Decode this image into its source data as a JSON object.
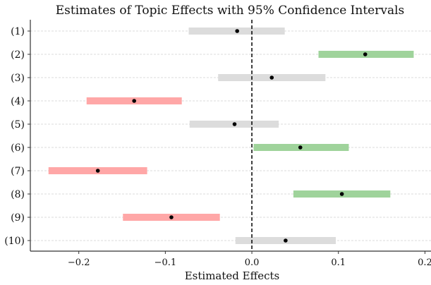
{
  "chart_data": {
    "type": "forest",
    "title": "Estimates of Topic Effects with 95% Confidence Intervals",
    "xlabel": "Estimated Effects",
    "ylabel": "",
    "xlim": [
      -0.256,
      0.207
    ],
    "xticks": [
      -0.2,
      -0.1,
      0.0,
      0.1,
      0.2
    ],
    "xtick_labels": [
      "−0.2",
      "−0.1",
      "0.0",
      "0.1",
      "0.2"
    ],
    "reference_line": 0.0,
    "grid": "horizontal dashed",
    "colors": {
      "positive": "#9fd39b",
      "negative": "#ffa7a7",
      "neutral": "#dcdcdc",
      "point": "#000000"
    },
    "categories": [
      "(1)",
      "(2)",
      "(3)",
      "(4)",
      "(5)",
      "(6)",
      "(7)",
      "(8)",
      "(9)",
      "(10)"
    ],
    "estimates": [
      -0.017,
      0.131,
      0.023,
      -0.136,
      -0.02,
      0.056,
      -0.178,
      0.104,
      -0.093,
      0.039
    ],
    "ci_lower": [
      -0.073,
      0.077,
      -0.039,
      -0.191,
      -0.072,
      0.002,
      -0.235,
      0.048,
      -0.149,
      -0.019
    ],
    "ci_upper": [
      0.038,
      0.187,
      0.085,
      -0.081,
      0.031,
      0.112,
      -0.121,
      0.16,
      -0.037,
      0.097
    ],
    "significance": [
      "neutral",
      "positive",
      "neutral",
      "negative",
      "neutral",
      "positive",
      "negative",
      "positive",
      "negative",
      "neutral"
    ]
  }
}
